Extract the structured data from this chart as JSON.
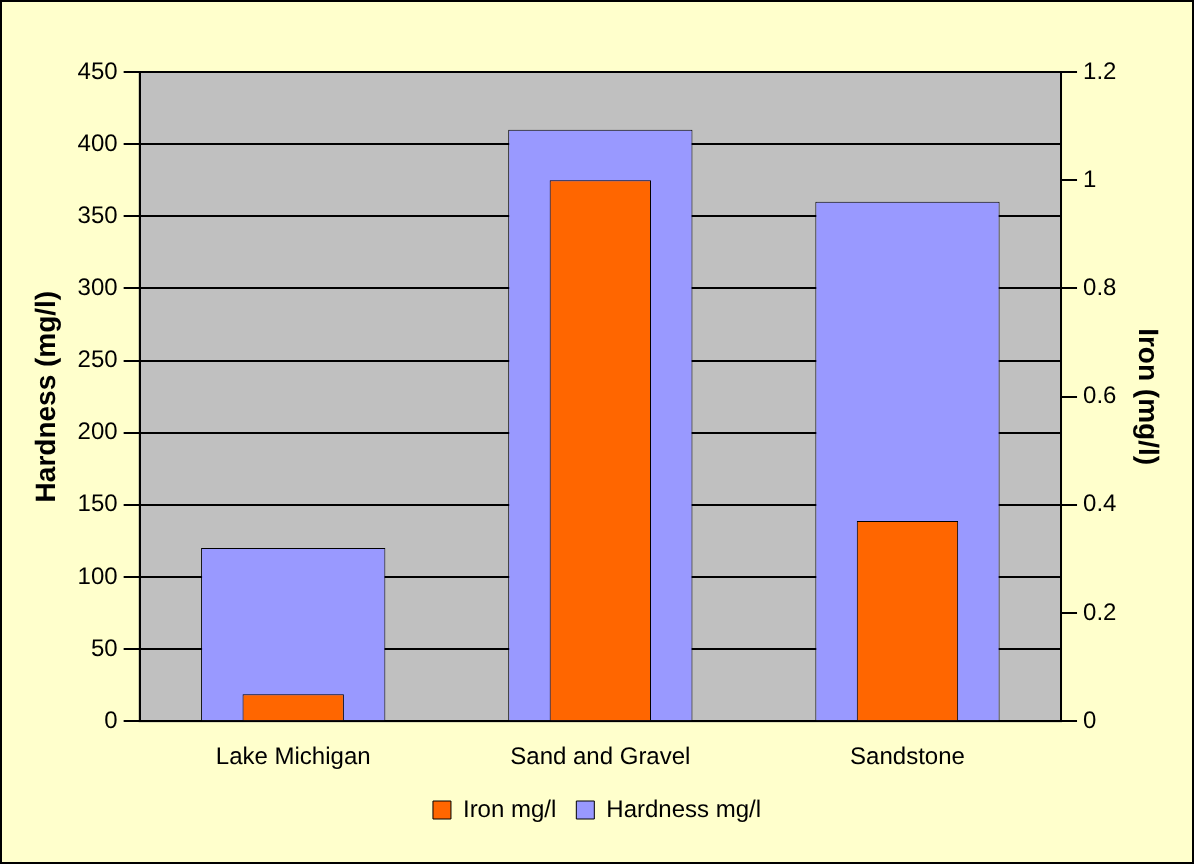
{
  "chart_data": {
    "type": "bar",
    "categories": [
      "Lake Michigan",
      "Sand and Gravel",
      "Sandstone"
    ],
    "series": [
      {
        "name": "Hardness mg/l",
        "color": "#9999ff",
        "values": [
          120,
          410,
          360
        ]
      },
      {
        "name": "Iron mg/l",
        "color": "#ff6600",
        "values": [
          0.05,
          1.0,
          0.37
        ],
        "axis": "y2"
      }
    ],
    "ylabel": "Hardness (mg/l)",
    "y2label": "Iron (mg/l)",
    "ylim": [
      0,
      450
    ],
    "yticks": [
      0,
      50,
      100,
      150,
      200,
      250,
      300,
      350,
      400,
      450
    ],
    "y2lim": [
      0,
      1.2
    ],
    "y2ticks": [
      0,
      0.2,
      0.4,
      0.6,
      0.8,
      1,
      1.2
    ],
    "grid": "y",
    "legend": "bottom"
  }
}
